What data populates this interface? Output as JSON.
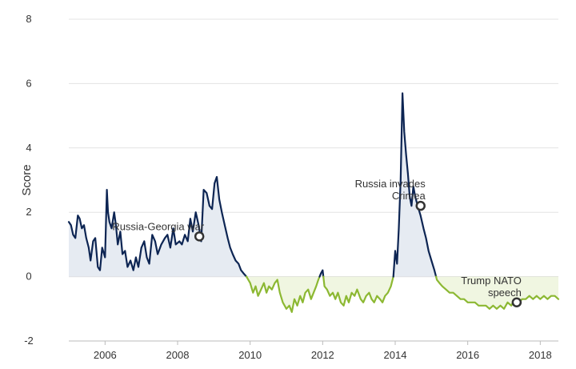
{
  "chart_data": {
    "type": "area",
    "title": "",
    "xlabel": "",
    "ylabel": "Score",
    "xlim": [
      2005.0,
      2018.5
    ],
    "ylim": [
      -2,
      8
    ],
    "y_ticks": [
      8,
      6,
      4,
      2,
      0,
      -2
    ],
    "x_ticks": [
      "2006",
      "2008",
      "2010",
      "2012",
      "2014",
      "2016",
      "2018"
    ],
    "grid": "horizontal",
    "colors": {
      "positive_line": "#0d2553",
      "positive_fill": "#e6ebf2",
      "negative_line": "#8cb832",
      "negative_fill": "#f0f6e1",
      "grid": "#e3e3e3",
      "marker": "#333333"
    },
    "series": [
      {
        "x": [
          2005.0,
          2005.06,
          2005.12,
          2005.18,
          2005.25,
          2005.3,
          2005.36,
          2005.42,
          2005.48,
          2005.55,
          2005.6,
          2005.67,
          2005.73,
          2005.8,
          2005.86,
          2005.92,
          2006.0,
          2006.05,
          2006.08,
          2006.12,
          2006.18,
          2006.25,
          2006.3,
          2006.35,
          2006.42,
          2006.48,
          2006.55,
          2006.62,
          2006.7,
          2006.78,
          2006.85,
          2006.92,
          2007.0,
          2007.08,
          2007.15,
          2007.22,
          2007.3,
          2007.38,
          2007.45,
          2007.55,
          2007.65,
          2007.72,
          2007.8,
          2007.88,
          2007.95,
          2008.05,
          2008.12,
          2008.2,
          2008.28,
          2008.35,
          2008.42,
          2008.5,
          2008.58,
          2008.65,
          2008.72,
          2008.8,
          2008.88,
          2008.95,
          2009.02,
          2009.08,
          2009.15,
          2009.22,
          2009.3,
          2009.38,
          2009.45,
          2009.52,
          2009.6,
          2009.68,
          2009.75,
          2009.82,
          2009.9,
          2010.0,
          2010.08,
          2010.15,
          2010.22,
          2010.3,
          2010.38,
          2010.45,
          2010.52,
          2010.6,
          2010.68,
          2010.75,
          2010.82,
          2010.9,
          2011.0,
          2011.08,
          2011.15,
          2011.22,
          2011.3,
          2011.38,
          2011.45,
          2011.52,
          2011.6,
          2011.68,
          2011.75,
          2011.82,
          2011.88,
          2011.95,
          2012.0,
          2012.05,
          2012.12,
          2012.2,
          2012.28,
          2012.35,
          2012.42,
          2012.5,
          2012.58,
          2012.65,
          2012.72,
          2012.8,
          2012.88,
          2012.95,
          2013.05,
          2013.12,
          2013.2,
          2013.28,
          2013.35,
          2013.42,
          2013.5,
          2013.58,
          2013.65,
          2013.72,
          2013.8,
          2013.88,
          2013.95,
          2014.0,
          2014.05,
          2014.1,
          2014.15,
          2014.2,
          2014.25,
          2014.3,
          2014.35,
          2014.4,
          2014.45,
          2014.5,
          2014.55,
          2014.62,
          2014.7,
          2014.78,
          2014.85,
          2014.92,
          2015.0,
          2015.08,
          2015.15,
          2015.22,
          2015.3,
          2015.4,
          2015.5,
          2015.6,
          2015.7,
          2015.8,
          2015.9,
          2016.0,
          2016.1,
          2016.2,
          2016.3,
          2016.4,
          2016.5,
          2016.6,
          2016.7,
          2016.8,
          2016.9,
          2017.0,
          2017.1,
          2017.2,
          2017.3,
          2017.4,
          2017.5,
          2017.6,
          2017.7,
          2017.8,
          2017.9,
          2018.0,
          2018.1,
          2018.2,
          2018.3,
          2018.4,
          2018.5
        ],
        "y": [
          1.7,
          1.6,
          1.3,
          1.2,
          1.9,
          1.8,
          1.5,
          1.6,
          1.2,
          0.9,
          0.5,
          1.1,
          1.2,
          0.3,
          0.2,
          0.9,
          0.6,
          2.7,
          2.0,
          1.7,
          1.5,
          2.0,
          1.6,
          1.0,
          1.4,
          0.7,
          0.8,
          0.3,
          0.5,
          0.2,
          0.6,
          0.3,
          0.9,
          1.1,
          0.6,
          0.4,
          1.3,
          1.1,
          0.7,
          1.0,
          1.2,
          1.3,
          0.9,
          1.5,
          1.0,
          1.1,
          1.0,
          1.3,
          1.1,
          1.8,
          1.4,
          2.0,
          1.6,
          1.1,
          2.7,
          2.6,
          2.2,
          2.1,
          2.9,
          3.1,
          2.4,
          2.0,
          1.6,
          1.2,
          0.9,
          0.7,
          0.5,
          0.4,
          0.2,
          0.1,
          0.0,
          -0.2,
          -0.5,
          -0.3,
          -0.6,
          -0.4,
          -0.2,
          -0.5,
          -0.3,
          -0.4,
          -0.2,
          -0.1,
          -0.5,
          -0.8,
          -1.0,
          -0.9,
          -1.1,
          -0.7,
          -0.9,
          -0.6,
          -0.8,
          -0.5,
          -0.4,
          -0.7,
          -0.5,
          -0.3,
          -0.1,
          0.1,
          0.2,
          -0.3,
          -0.4,
          -0.6,
          -0.5,
          -0.7,
          -0.5,
          -0.8,
          -0.9,
          -0.6,
          -0.8,
          -0.5,
          -0.6,
          -0.4,
          -0.7,
          -0.8,
          -0.6,
          -0.5,
          -0.7,
          -0.8,
          -0.6,
          -0.7,
          -0.8,
          -0.6,
          -0.5,
          -0.3,
          0.0,
          0.8,
          0.4,
          1.5,
          3.0,
          5.7,
          4.5,
          3.8,
          3.2,
          2.5,
          2.2,
          2.8,
          2.5,
          2.2,
          1.9,
          1.5,
          1.2,
          0.8,
          0.5,
          0.2,
          -0.1,
          -0.2,
          -0.3,
          -0.4,
          -0.5,
          -0.5,
          -0.6,
          -0.7,
          -0.7,
          -0.8,
          -0.8,
          -0.8,
          -0.9,
          -0.9,
          -0.9,
          -1.0,
          -0.9,
          -1.0,
          -0.9,
          -1.0,
          -0.8,
          -0.9,
          -0.7,
          -0.8,
          -0.7,
          -0.7,
          -0.6,
          -0.7,
          -0.6,
          -0.7,
          -0.6,
          -0.7,
          -0.6,
          -0.6,
          -0.7
        ]
      }
    ],
    "annotations": [
      {
        "text": "Russia-Georgia war",
        "x": 2008.6,
        "y": 1.25,
        "label_lines": [
          "Russia-Georgia war"
        ],
        "label_anchor": "above-left"
      },
      {
        "text": "Russia invades Crimea",
        "x": 2014.7,
        "y": 2.2,
        "label_lines": [
          "Russia invades",
          "Crimea"
        ],
        "label_anchor": "above-left"
      },
      {
        "text": "Trump NATO speech",
        "x": 2017.35,
        "y": -0.8,
        "label_lines": [
          "Trump NATO",
          "speech"
        ],
        "label_anchor": "above-left"
      }
    ]
  }
}
